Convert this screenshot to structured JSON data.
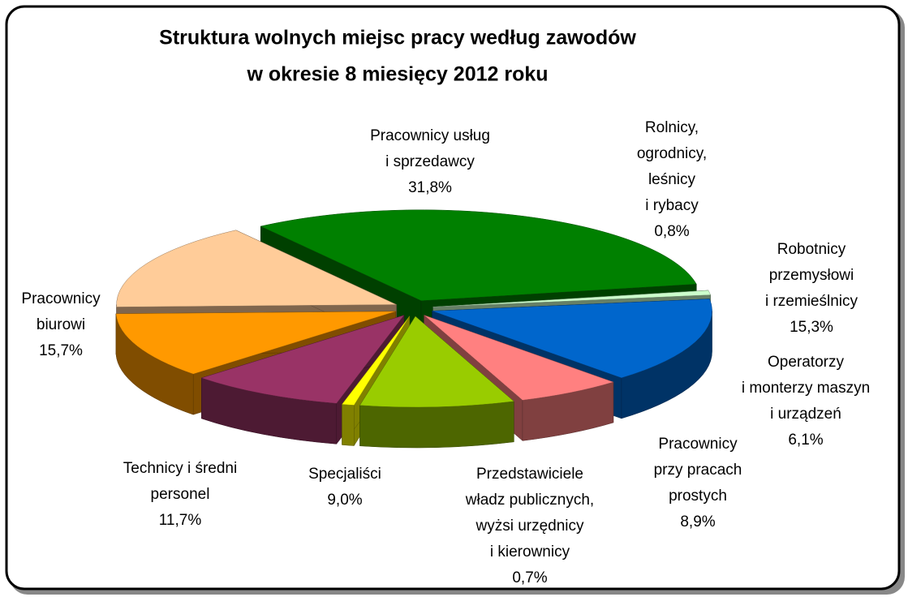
{
  "chart_data": {
    "type": "pie3d",
    "title": [
      "Struktura wolnych miejsc pracy według zawodów",
      "w okresie 8 miesięcy 2012 roku"
    ],
    "categories": [
      [
        "Pracownicy usług",
        "i sprzedawcy"
      ],
      [
        "Rolnicy,",
        "ogrodnicy,",
        "leśnicy",
        "i rybacy"
      ],
      [
        "Robotnicy",
        "przemysłowi",
        "i rzemieślnicy"
      ],
      [
        "Operatorzy",
        "i monterzy maszyn",
        "i urządzeń"
      ],
      [
        "Pracownicy",
        "przy pracach",
        "prostych"
      ],
      [
        "Przedstawiciele",
        "władz publicznych,",
        "wyżsi urzędnicy",
        "i kierownicy"
      ],
      [
        "Specjaliści"
      ],
      [
        "Technicy i średni",
        "personel"
      ],
      [
        "Pracownicy",
        "biurowi"
      ]
    ],
    "values": [
      31.8,
      0.8,
      15.3,
      6.1,
      8.9,
      0.7,
      9.0,
      11.7,
      15.7
    ],
    "value_labels": [
      "31,8%",
      "0,8%",
      "15,3%",
      "6,1%",
      "8,9%",
      "0,7%",
      "9,0%",
      "11,7%",
      "15,7%"
    ],
    "colors": [
      "#008000",
      "#ccffcc",
      "#0066cc",
      "#ff8080",
      "#99cc00",
      "#ffff00",
      "#993366",
      "#ff9900",
      "#ffcc99"
    ]
  }
}
